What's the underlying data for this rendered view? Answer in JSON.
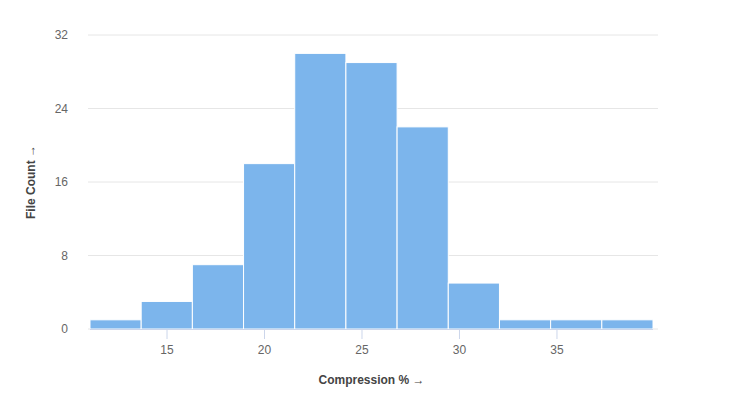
{
  "chart_data": {
    "type": "histogram",
    "x_label": "Compression % →",
    "y_label": "File Count →",
    "bins": [
      11.05,
      13.675,
      16.3,
      18.925,
      21.55,
      24.175,
      26.8,
      29.425,
      32.05,
      34.675,
      37.3,
      39.925
    ],
    "values": [
      1,
      3,
      7,
      18,
      30,
      29,
      22,
      5,
      1,
      1,
      1
    ],
    "color": "#7cb5ec",
    "xlim": [
      11.05,
      39.925
    ],
    "xticks": [
      15,
      20,
      25,
      30,
      35
    ],
    "ylim": [
      0,
      32
    ],
    "yticks": [
      0,
      8,
      16,
      24,
      32
    ],
    "grid": true
  }
}
